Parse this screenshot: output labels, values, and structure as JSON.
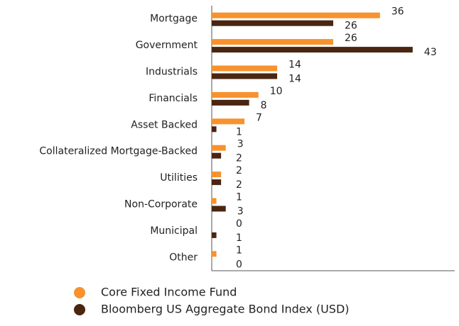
{
  "chart_data": {
    "type": "bar",
    "orientation": "horizontal",
    "categories": [
      "Mortgage",
      "Government",
      "Industrials",
      "Financials",
      "Asset Backed",
      "Collateralized Mortgage-Backed",
      "Utilities",
      "Non-Corporate",
      "Municipal",
      "Other"
    ],
    "series": [
      {
        "name": "Core Fixed Income Fund",
        "color": "#f7922e",
        "values": [
          36,
          26,
          14,
          10,
          7,
          3,
          2,
          1,
          0,
          1
        ]
      },
      {
        "name": "Bloomberg US Aggregate Bond Index (USD)",
        "color": "#4a2511",
        "values": [
          26,
          43,
          14,
          8,
          1,
          2,
          2,
          3,
          1,
          0
        ]
      }
    ],
    "xlim": [
      0,
      52
    ],
    "legend": "bottom"
  }
}
